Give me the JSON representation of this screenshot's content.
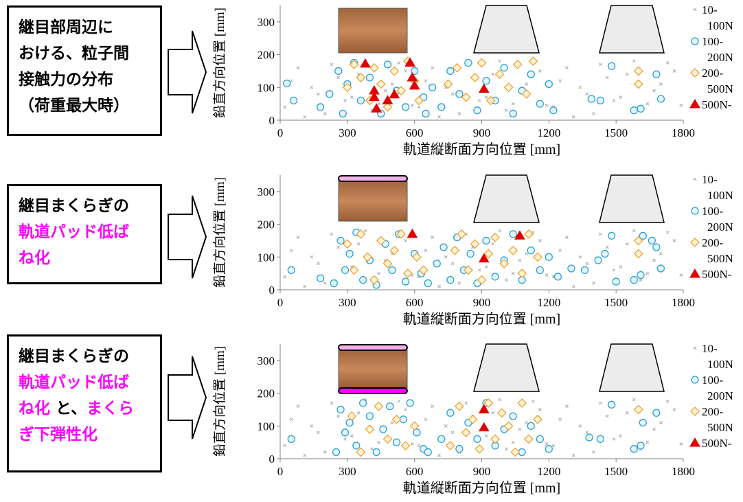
{
  "captions": [
    [
      [
        {
          "text": "継目部周辺に",
          "color": "#000000"
        }
      ],
      [
        {
          "text": "おける、粒子間",
          "color": "#000000"
        }
      ],
      [
        {
          "text": "接触力の分布",
          "color": "#000000"
        }
      ],
      [
        {
          "text": "（荷重最大時）",
          "color": "#000000"
        }
      ]
    ],
    [
      [
        {
          "text": "継目まくらぎの",
          "color": "#000000"
        }
      ],
      [
        {
          "text": "軌道パッド低ば",
          "color": "#ff00ff"
        }
      ],
      [
        {
          "text": "ね化",
          "color": "#ff00ff"
        }
      ]
    ],
    [
      [
        {
          "text": "継目まくらぎの",
          "color": "#000000"
        }
      ],
      [
        {
          "text": "軌道パッド低ば",
          "color": "#ff00ff"
        }
      ],
      [
        {
          "text": "ね化",
          "color": "#ff00ff"
        },
        {
          "text": " と、",
          "color": "#000000"
        },
        {
          "text": "まくら",
          "color": "#ff00ff"
        }
      ],
      [
        {
          "text": "ぎ下弾性化",
          "color": "#ff00ff"
        }
      ]
    ]
  ],
  "chart_data": [
    {
      "type": "scatter",
      "xlabel": "軌道縦断面方向位置 [mm]",
      "ylabel": "鉛直方向位置 [mm]",
      "xlim": [
        0,
        1800
      ],
      "xticks": [
        0,
        300,
        600,
        900,
        1200,
        1500,
        1800
      ],
      "ylim": [
        0,
        350
      ],
      "yticks": [
        0,
        100,
        200,
        300
      ],
      "series": [
        {
          "name": "10-100N",
          "color": "#b4b4b4",
          "marker": "x",
          "x": [
            20,
            80,
            140,
            200,
            260,
            320,
            380,
            440,
            500,
            560,
            620,
            680,
            740,
            800,
            860,
            920,
            980,
            1040,
            1100,
            1160,
            1220,
            1280,
            1340,
            1400,
            1460,
            1520,
            1580,
            1640,
            1700,
            1760,
            50,
            110,
            170,
            230,
            290,
            350,
            410,
            470,
            530,
            590,
            650,
            710,
            770,
            830,
            890,
            950,
            1010,
            1070,
            1130,
            1190,
            1250,
            1310,
            1370,
            1430,
            1490,
            1550,
            1610,
            1670,
            1730,
            1790
          ],
          "values": [
            40,
            160,
            100,
            20,
            130,
            70,
            180,
            50,
            110,
            150,
            40,
            160,
            100,
            20,
            130,
            70,
            180,
            50,
            110,
            150,
            40,
            160,
            100,
            20,
            130,
            70,
            180,
            50,
            110,
            150,
            120,
            10,
            80,
            170,
            60,
            140,
            30,
            90,
            175,
            45,
            120,
            10,
            80,
            170,
            60,
            140,
            30,
            90,
            175,
            45,
            120,
            10,
            80,
            170,
            60,
            140,
            30,
            90,
            175,
            45
          ]
        },
        {
          "name": "100-200N",
          "color": "#2a9fd6",
          "marker": "circle",
          "x": [
            30,
            60,
            180,
            220,
            260,
            280,
            300,
            330,
            360,
            400,
            450,
            480,
            520,
            560,
            600,
            640,
            650,
            680,
            720,
            760,
            800,
            840,
            880,
            920,
            960,
            1000,
            1040,
            1080,
            1120,
            1160,
            1200,
            1220,
            1390,
            1430,
            1480,
            1580,
            1610,
            1680,
            1700
          ],
          "values": [
            112,
            60,
            40,
            80,
            150,
            20,
            110,
            175,
            60,
            130,
            20,
            170,
            90,
            40,
            150,
            70,
            20,
            100,
            40,
            150,
            80,
            175,
            30,
            120,
            60,
            160,
            20,
            90,
            140,
            50,
            110,
            30,
            65,
            60,
            165,
            30,
            35,
            140,
            65
          ]
        },
        {
          "name": "200-500N",
          "color": "#f0a030",
          "marker": "diamond",
          "x": [
            300,
            330,
            360,
            400,
            420,
            450,
            480,
            510,
            540,
            570,
            600,
            620,
            750,
            790,
            830,
            870,
            900,
            940,
            980,
            1020,
            1060,
            1100,
            1130,
            1600,
            1600
          ],
          "values": [
            100,
            170,
            130,
            60,
            160,
            110,
            40,
            150,
            90,
            180,
            120,
            60,
            110,
            160,
            70,
            130,
            175,
            60,
            140,
            100,
            170,
            80,
            180,
            150,
            110
          ]
        },
        {
          "name": "500N-",
          "color": "#e00000",
          "marker": "triangle",
          "x": [
            380,
            420,
            420,
            430,
            480,
            510,
            580,
            590,
            600,
            910
          ],
          "values": [
            172,
            90,
            70,
            35,
            60,
            78,
            175,
            130,
            105,
            95
          ]
        }
      ]
    },
    {
      "type": "scatter",
      "xlabel": "軌道縦断面方向位置 [mm]",
      "ylabel": "鉛直方向位置 [mm]",
      "xlim": [
        0,
        1800
      ],
      "xticks": [
        0,
        300,
        600,
        900,
        1200,
        1500,
        1800
      ],
      "ylim": [
        0,
        350
      ],
      "yticks": [
        0,
        100,
        200,
        300
      ],
      "series": [
        {
          "name": "10-100N",
          "color": "#b4b4b4",
          "marker": "x",
          "x": [
            20,
            80,
            140,
            200,
            260,
            320,
            380,
            440,
            500,
            560,
            620,
            680,
            740,
            800,
            860,
            920,
            980,
            1040,
            1100,
            1160,
            1220,
            1280,
            1340,
            1400,
            1460,
            1520,
            1580,
            1640,
            1700,
            1760,
            50,
            110,
            170,
            230,
            290,
            350,
            410,
            470,
            530,
            590,
            650,
            710,
            770,
            830,
            890,
            950,
            1010,
            1070,
            1130,
            1190,
            1250,
            1310,
            1370,
            1430,
            1490,
            1550,
            1610,
            1670,
            1730,
            1790
          ],
          "values": [
            40,
            160,
            100,
            20,
            130,
            70,
            180,
            50,
            110,
            150,
            40,
            160,
            100,
            20,
            130,
            70,
            180,
            50,
            110,
            150,
            40,
            160,
            100,
            20,
            130,
            70,
            180,
            50,
            110,
            150,
            120,
            10,
            80,
            170,
            60,
            140,
            30,
            90,
            175,
            45,
            120,
            10,
            80,
            170,
            60,
            140,
            30,
            90,
            175,
            45,
            120,
            10,
            80,
            170,
            60,
            140,
            30,
            90,
            175,
            45
          ]
        },
        {
          "name": "100-200N",
          "color": "#2a9fd6",
          "marker": "circle",
          "x": [
            50,
            180,
            240,
            270,
            290,
            310,
            340,
            370,
            400,
            430,
            470,
            500,
            530,
            560,
            600,
            630,
            660,
            700,
            730,
            760,
            790,
            820,
            850,
            880,
            920,
            960,
            1000,
            1040,
            1080,
            1120,
            1160,
            1200,
            1240,
            1300,
            1360,
            1420,
            1450,
            1480,
            1500,
            1580,
            1610,
            1620,
            1660,
            1680,
            1700
          ],
          "values": [
            60,
            35,
            20,
            150,
            60,
            110,
            175,
            30,
            90,
            15,
            140,
            60,
            170,
            25,
            110,
            50,
            20,
            80,
            130,
            30,
            160,
            60,
            110,
            20,
            150,
            40,
            90,
            170,
            30,
            120,
            60,
            100,
            40,
            65,
            60,
            90,
            110,
            165,
            25,
            30,
            45,
            165,
            150,
            130,
            65
          ]
        },
        {
          "name": "200-500N",
          "color": "#f0a030",
          "marker": "diamond",
          "x": [
            300,
            330,
            360,
            390,
            420,
            450,
            480,
            510,
            540,
            570,
            610,
            640,
            780,
            810,
            840,
            870,
            900,
            930,
            960,
            1000,
            1040,
            1080,
            1110,
            1150,
            1600,
            1600
          ],
          "values": [
            140,
            60,
            170,
            100,
            30,
            150,
            80,
            120,
            170,
            50,
            100,
            60,
            120,
            170,
            60,
            140,
            30,
            110,
            160,
            80,
            120,
            50,
            170,
            100,
            150,
            110
          ]
        },
        {
          "name": "500N-",
          "color": "#e00000",
          "marker": "triangle",
          "x": [
            590,
            910,
            1070
          ],
          "values": [
            170,
            95,
            165
          ]
        }
      ]
    },
    {
      "type": "scatter",
      "xlabel": "軌道縦断面方向位置 [mm]",
      "ylabel": "鉛直方向位置 [mm]",
      "xlim": [
        0,
        1800
      ],
      "xticks": [
        0,
        300,
        600,
        900,
        1200,
        1500,
        1800
      ],
      "ylim": [
        0,
        350
      ],
      "yticks": [
        0,
        100,
        200,
        300
      ],
      "series": [
        {
          "name": "10-100N",
          "color": "#b4b4b4",
          "marker": "x",
          "x": [
            20,
            80,
            140,
            200,
            260,
            320,
            380,
            440,
            500,
            560,
            620,
            680,
            740,
            800,
            860,
            920,
            980,
            1040,
            1100,
            1160,
            1220,
            1280,
            1340,
            1400,
            1460,
            1520,
            1580,
            1640,
            1700,
            1760,
            50,
            110,
            170,
            230,
            290,
            350,
            410,
            470,
            530,
            590,
            650,
            710,
            770,
            830,
            890,
            950,
            1010,
            1070,
            1130,
            1190,
            1250,
            1310,
            1370,
            1430,
            1490,
            1550,
            1610,
            1670,
            1730,
            1790
          ],
          "values": [
            40,
            160,
            100,
            20,
            130,
            70,
            180,
            50,
            110,
            150,
            40,
            160,
            100,
            20,
            130,
            70,
            180,
            50,
            110,
            150,
            40,
            160,
            100,
            20,
            130,
            70,
            180,
            50,
            110,
            150,
            120,
            10,
            80,
            170,
            60,
            140,
            30,
            90,
            175,
            45,
            120,
            10,
            80,
            170,
            60,
            140,
            30,
            90,
            175,
            45,
            120,
            10,
            80,
            170,
            60,
            140,
            30,
            90,
            175,
            45
          ]
        },
        {
          "name": "100-200N",
          "color": "#2a9fd6",
          "marker": "circle",
          "x": [
            50,
            250,
            270,
            290,
            310,
            340,
            370,
            400,
            430,
            460,
            490,
            520,
            550,
            580,
            610,
            640,
            660,
            720,
            760,
            800,
            840,
            880,
            920,
            960,
            1000,
            1040,
            1080,
            1120,
            1160,
            1200,
            1380,
            1430,
            1480,
            1580,
            1610,
            1620,
            1680
          ],
          "values": [
            60,
            20,
            150,
            80,
            110,
            40,
            170,
            130,
            20,
            90,
            160,
            50,
            120,
            170,
            80,
            30,
            20,
            60,
            140,
            30,
            110,
            60,
            170,
            40,
            90,
            130,
            20,
            100,
            60,
            30,
            65,
            60,
            165,
            30,
            40,
            110,
            140
          ]
        },
        {
          "name": "200-500N",
          "color": "#f0a030",
          "marker": "diamond",
          "x": [
            320,
            360,
            400,
            440,
            480,
            520,
            560,
            600,
            760,
            800,
            830,
            860,
            890,
            930,
            960,
            990,
            1020,
            1050,
            1080,
            1110,
            1150,
            1600
          ],
          "values": [
            130,
            20,
            90,
            160,
            60,
            120,
            40,
            100,
            40,
            160,
            80,
            120,
            30,
            170,
            60,
            140,
            100,
            20,
            170,
            60,
            120,
            150
          ]
        },
        {
          "name": "500N-",
          "color": "#e00000",
          "marker": "triangle",
          "x": [
            910,
            910
          ],
          "values": [
            150,
            95
          ]
        }
      ]
    }
  ]
}
